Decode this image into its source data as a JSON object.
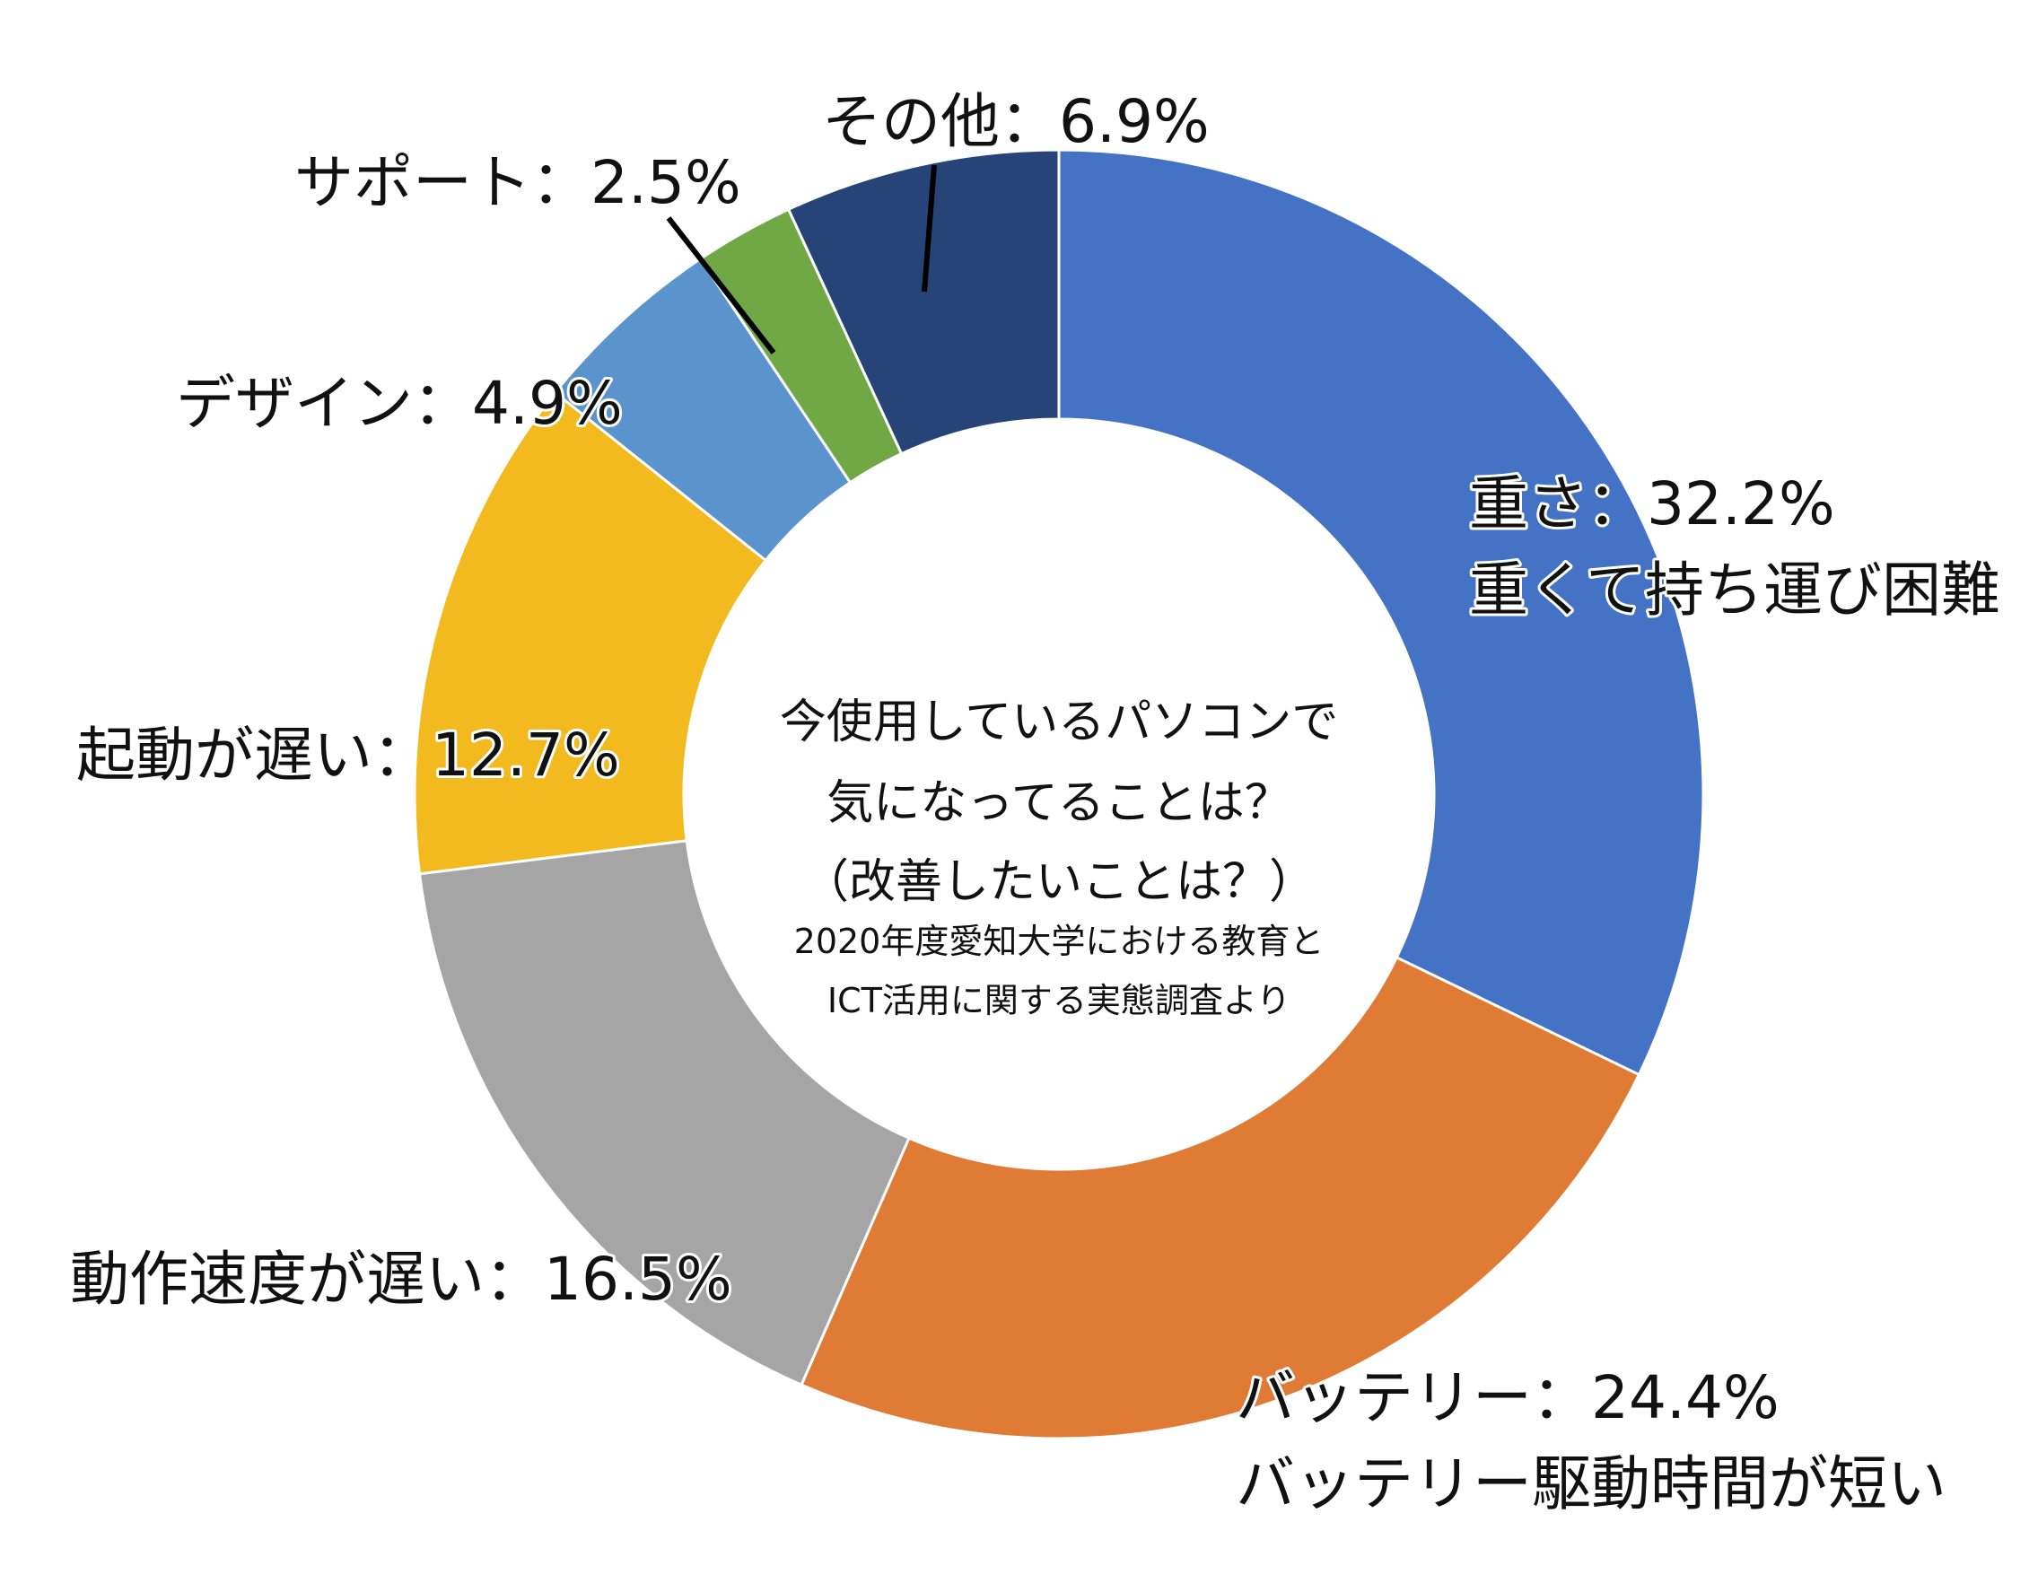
{
  "chart_data": {
    "type": "pie",
    "donut": true,
    "start_angle_deg": 0,
    "direction": "clockwise",
    "slices": [
      {
        "label": "重さ",
        "value": 32.2,
        "color": "#4472C4"
      },
      {
        "label": "バッテリー",
        "value": 24.4,
        "color": "#E07B36"
      },
      {
        "label": "動作速度が遅い",
        "value": 16.5,
        "color": "#A5A5A5"
      },
      {
        "label": "起動が遅い",
        "value": 12.7,
        "color": "#F2BA1E"
      },
      {
        "label": "デザイン",
        "value": 4.9,
        "color": "#5B94CD"
      },
      {
        "label": "サポート",
        "value": 2.5,
        "color": "#6FA845"
      },
      {
        "label": "その他",
        "value": 6.9,
        "color": "#264477"
      }
    ],
    "labels": {
      "weight_1": "重さ：32.2%",
      "weight_2": "重くて持ち運び困難",
      "battery_1": "バッテリー：24.4%",
      "battery_2": "バッテリー駆動時間が短い",
      "speed": "動作速度が遅い：16.5%",
      "boot": "起動が遅い：12.7%",
      "design": "デザイン：4.9%",
      "support": "サポート：2.5%",
      "other": "その他：6.9%"
    },
    "center": {
      "line1": "今使用しているパソコンで",
      "line2": "気になってることは？",
      "line3": "（改善したいことは？）",
      "note1": "2020年度愛知大学における教育と",
      "note2": "ICT活用に関する実態調査より"
    }
  }
}
